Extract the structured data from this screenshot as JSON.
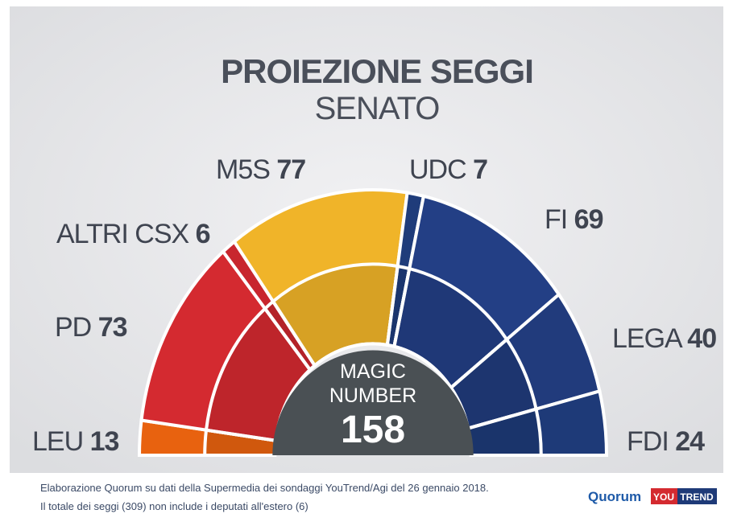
{
  "chart_data": {
    "type": "semicircle",
    "title": "PROIEZIONE SEGGI",
    "subtitle": "SENATO",
    "categories": [
      "LEU",
      "PD",
      "ALTRI CSX",
      "M5S",
      "UDC",
      "FI",
      "LEGA",
      "FDI"
    ],
    "values": [
      13,
      73,
      6,
      77,
      7,
      69,
      40,
      24
    ],
    "colors": [
      "#e8620f",
      "#d42a30",
      "#c8262e",
      "#f0b429",
      "#1f3c7a",
      "#233f85",
      "#213b7c",
      "#1e3a78"
    ],
    "center_label_lines": [
      "MAGIC",
      "NUMBER"
    ],
    "magic_number": 158,
    "footnotes": [
      "Elaborazione Quorum su dati della Supermedia dei sondaggi YouTrend/Agi del 26 gennaio 2018.",
      "Il totale dei seggi (309) non include i deputati all'estero (6)"
    ],
    "logos": [
      "Quorum",
      "YOU",
      "TREND"
    ]
  }
}
